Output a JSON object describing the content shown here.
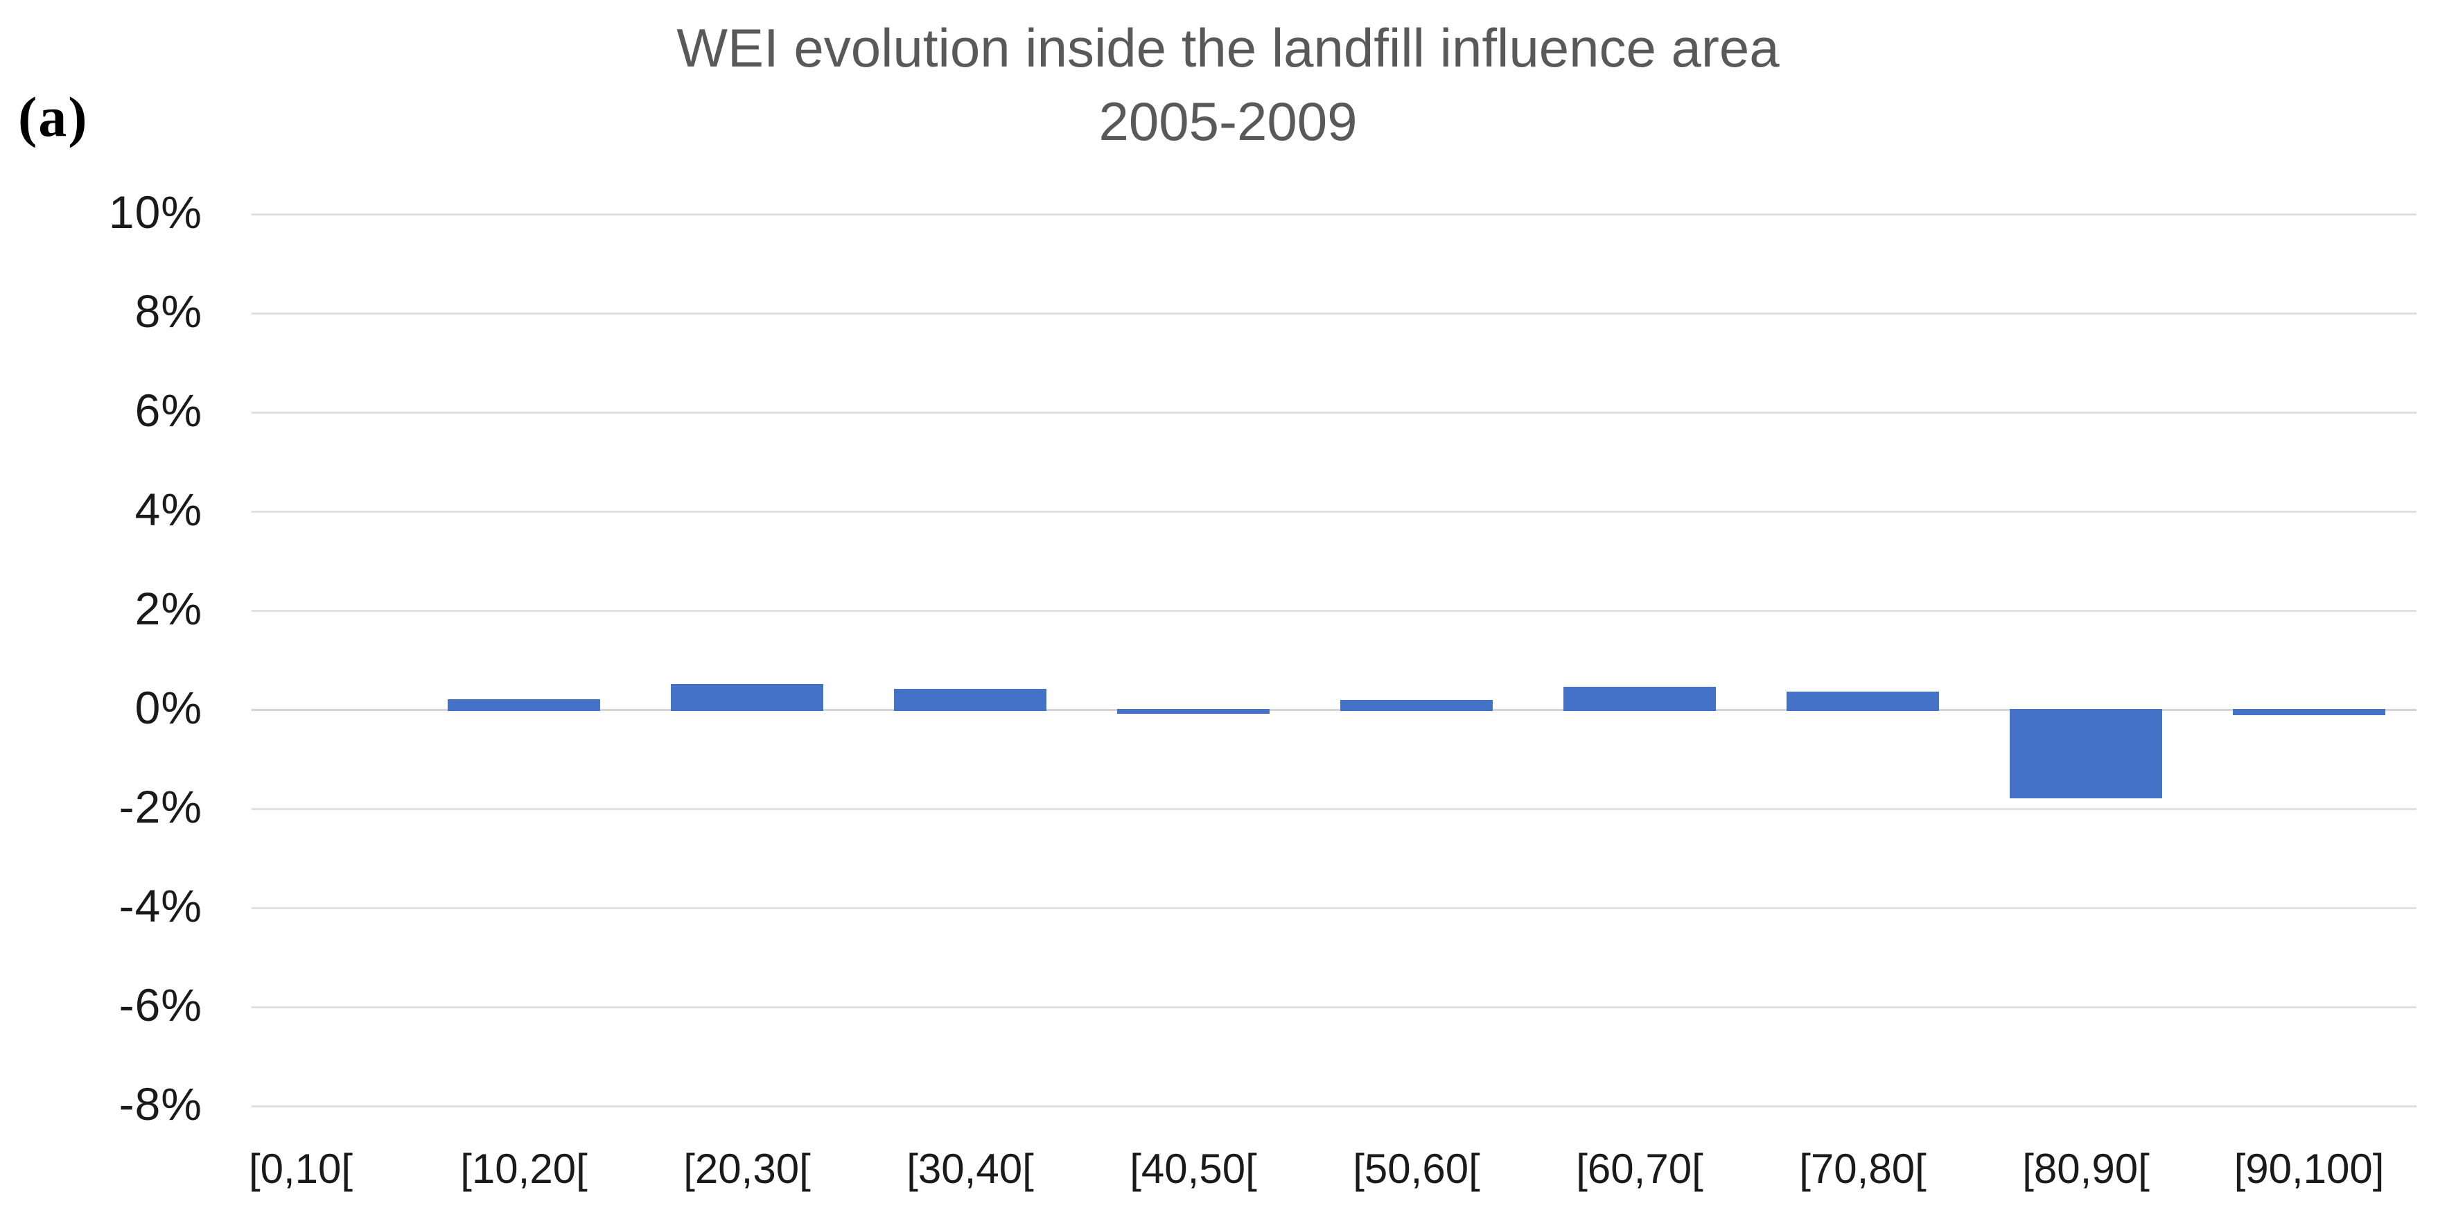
{
  "figure_label": "(a)",
  "title": {
    "line1": "WEI evolution inside the landfill influence area",
    "line2": "2005-2009"
  },
  "colors": {
    "bar": "#4472C6",
    "gridline": "#E1E1E1",
    "zero_line": "#D5D5D5",
    "title_text": "#595959",
    "axis_text": "#1A1A1A",
    "background": "#FFFFFF"
  },
  "chart_data": {
    "type": "bar",
    "title": "WEI evolution inside the landfill influence area",
    "subtitle": "2005-2009",
    "categories": [
      "[0,10[",
      "[10,20[",
      "[20,30[",
      "[30,40[",
      "[40,50[",
      "[50,60[",
      "[60,70[",
      "[70,80[",
      "[80,90[",
      "[90,100]"
    ],
    "values": [
      0.0,
      0.2,
      0.5,
      0.4,
      -0.1,
      0.18,
      0.45,
      0.35,
      -1.8,
      -0.12
    ],
    "unit": "%",
    "xlabel": "",
    "ylabel": "",
    "ylim": [
      -8,
      10
    ],
    "ytick_step": 2,
    "ytick_labels": [
      "10%",
      "8%",
      "6%",
      "4%",
      "2%",
      "0%",
      "-2%",
      "-4%",
      "-6%",
      "-8%"
    ],
    "ytick_values": [
      10,
      8,
      6,
      4,
      2,
      0,
      -2,
      -4,
      -6,
      -8
    ],
    "grid": true,
    "legend": false,
    "bar_color": "#4472C6"
  }
}
